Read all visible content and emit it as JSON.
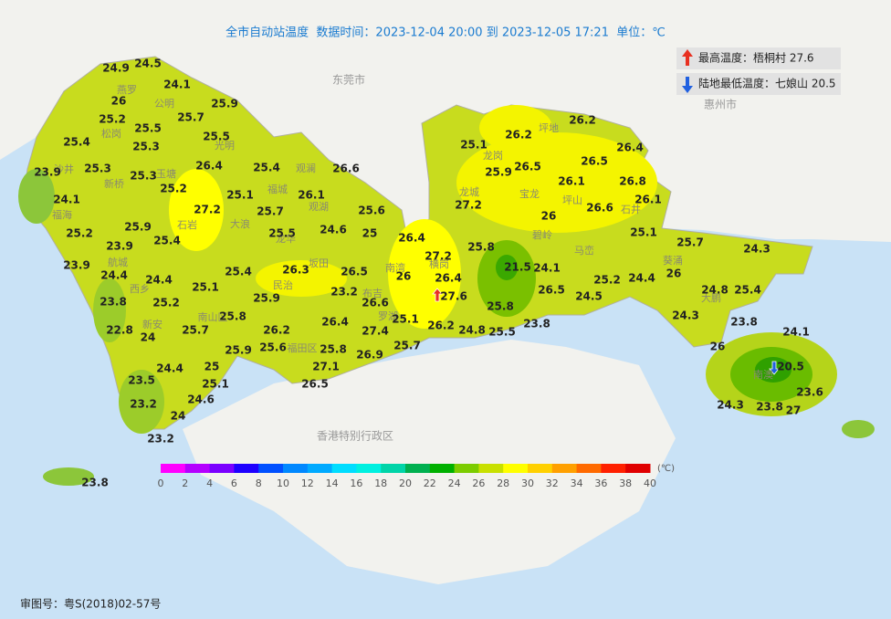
{
  "header": {
    "title": "全市自动站温度  数据时间：2023-12-04 20:00 到 2023-12-05 17:21  单位：℃"
  },
  "info": {
    "max": "最高温度：梧桐村 27.6",
    "min": "陆地最低温度：七娘山 20.5"
  },
  "footer": "审图号：粤S(2018)02-57号",
  "regions": [
    "东莞市",
    "惠州市",
    "香港特别行政区"
  ],
  "places": [
    "燕罗",
    "公明",
    "松岗",
    "光明",
    "沙井",
    "新桥",
    "玉塘",
    "福海",
    "石岩",
    "大浪",
    "观澜",
    "福城",
    "观湖",
    "龙华",
    "民治",
    "坂田",
    "南湾",
    "横岗",
    "布吉",
    "航城",
    "西乡",
    "新安",
    "南山区",
    "福田区",
    "罗湖",
    "龙岗",
    "坪地",
    "宝龙",
    "坪山",
    "龙城",
    "石井",
    "碧岭",
    "马峦",
    "葵涌",
    "大鹏",
    "南澳"
  ],
  "stations": [
    24.9,
    24.5,
    26,
    24.1,
    25.9,
    25.2,
    25.5,
    25.7,
    25.3,
    25.5,
    25.4,
    23.9,
    25.3,
    25.3,
    26.4,
    25.4,
    26.6,
    25.2,
    24.1,
    25.1,
    26.1,
    27.2,
    25.7,
    25.6,
    25.2,
    25.9,
    25.4,
    25.5,
    24.6,
    25,
    26.4,
    23.9,
    23.9,
    24.4,
    24.4,
    25.4,
    26.3,
    26.5,
    27.2,
    26,
    26.4,
    25.8,
    21.5,
    24.1,
    25.1,
    25.2,
    23.8,
    25.9,
    23.2,
    26.6,
    27.6,
    25.8,
    26.5,
    25.2,
    24.4,
    24.5,
    25.8,
    25.1,
    26.4,
    26.2,
    27.4,
    26.2,
    24.8,
    25.5,
    23.8,
    22.8,
    24,
    25.7,
    25.6,
    25.8,
    26.9,
    25.7,
    25.9,
    27.1,
    24.4,
    25,
    23.5,
    25.1,
    26.5,
    24.6,
    23.2,
    24,
    23.2,
    23.8,
    25.1,
    26.2,
    26.2,
    25.9,
    26.5,
    26.4,
    26.5,
    26.1,
    26.8,
    26.1,
    27.2,
    26,
    26.6,
    25.1,
    25.7,
    24.3,
    26,
    24.8,
    25.4,
    24.3,
    23.8,
    24.1,
    26,
    20.5,
    23.6,
    24.3,
    23.8,
    27
  ],
  "legend": {
    "unit": "(℃)",
    "ticks": [
      0,
      2,
      4,
      6,
      8,
      10,
      12,
      14,
      16,
      18,
      20,
      22,
      24,
      26,
      28,
      30,
      32,
      34,
      36,
      38,
      40
    ],
    "colors": [
      "#ff00ff",
      "#b400ff",
      "#7a00ff",
      "#1e00ff",
      "#0050ff",
      "#0088ff",
      "#00aaff",
      "#00ddff",
      "#00f0e0",
      "#00d4a8",
      "#00b050",
      "#00b000",
      "#7ccc00",
      "#c8e000",
      "#ffff00",
      "#ffd000",
      "#ffa000",
      "#ff6a00",
      "#ff2000",
      "#e00000",
      "#b00000",
      "#800000"
    ]
  }
}
